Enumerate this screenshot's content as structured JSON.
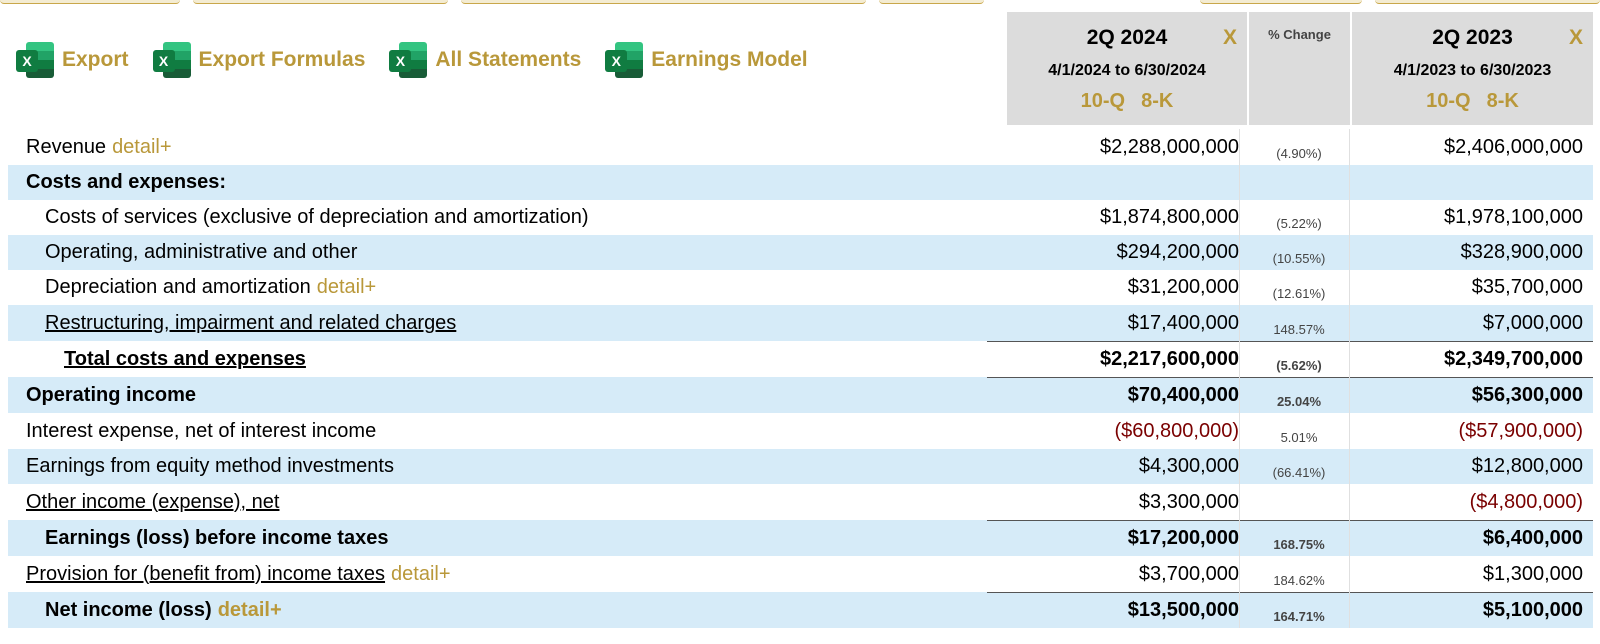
{
  "toolbar": [
    {
      "icon": "excel-icon",
      "icon_letter": "X",
      "label": "Export"
    },
    {
      "icon": "excel-icon",
      "icon_letter": "X",
      "label": "Export Formulas"
    },
    {
      "icon": "excel-icon",
      "icon_letter": "X",
      "label": "All Statements"
    },
    {
      "icon": "excel-icon",
      "icon_letter": "X",
      "label": "Earnings Model"
    }
  ],
  "columns": {
    "current": {
      "title": "2Q 2024",
      "close": "X",
      "dates": "4/1/2024 to 6/30/2024",
      "filings": [
        "10-Q",
        "8-K"
      ]
    },
    "change": {
      "title": "% Change"
    },
    "prior": {
      "title": "2Q 2023",
      "close": "X",
      "dates": "4/1/2023 to 6/30/2023",
      "filings": [
        "10-Q",
        "8-K"
      ]
    }
  },
  "detail_link": "detail+",
  "rows": [
    {
      "label": "Revenue",
      "detail": "detail+",
      "cur": "$2,288,000,000",
      "pct": "(4.90%)",
      "prior": "$2,406,000,000"
    },
    {
      "label": "Costs and expenses:",
      "cur": "",
      "pct": "",
      "prior": ""
    },
    {
      "label": "Costs of services (exclusive of depreciation and amortization)",
      "cur": "$1,874,800,000",
      "pct": "(5.22%)",
      "prior": "$1,978,100,000"
    },
    {
      "label": "Operating, administrative and other",
      "cur": "$294,200,000",
      "pct": "(10.55%)",
      "prior": "$328,900,000"
    },
    {
      "label": "Depreciation and amortization",
      "detail": "detail+",
      "cur": "$31,200,000",
      "pct": "(12.61%)",
      "prior": "$35,700,000"
    },
    {
      "label": "Restructuring, impairment and related charges",
      "cur": "$17,400,000",
      "pct": "148.57%",
      "prior": "$7,000,000"
    },
    {
      "label": "Total costs and expenses",
      "cur": "$2,217,600,000",
      "pct": "(5.62%)",
      "prior": "$2,349,700,000"
    },
    {
      "label": "Operating income",
      "cur": "$70,400,000",
      "pct": "25.04%",
      "prior": "$56,300,000"
    },
    {
      "label": "Interest expense, net of interest income",
      "cur": "($60,800,000)",
      "pct": "5.01%",
      "prior": "($57,900,000)"
    },
    {
      "label": "Earnings from equity method investments",
      "cur": "$4,300,000",
      "pct": "(66.41%)",
      "prior": "$12,800,000"
    },
    {
      "label": "Other income (expense), net",
      "cur": "$3,300,000",
      "pct": "",
      "prior": "($4,800,000)"
    },
    {
      "label": "Earnings (loss) before income taxes",
      "cur": "$17,200,000",
      "pct": "168.75%",
      "prior": "$6,400,000"
    },
    {
      "label": "Provision for (benefit from) income taxes",
      "detail": "detail+",
      "cur": "$3,700,000",
      "pct": "184.62%",
      "prior": "$1,300,000"
    },
    {
      "label": "Net income (loss)",
      "detail": "detail+",
      "cur": "$13,500,000",
      "pct": "164.71%",
      "prior": "$5,100,000"
    }
  ],
  "colors": {
    "accent_gold": "#b9983a",
    "row_blue": "#d6ebf8",
    "header_gray": "#dcdcdc",
    "negative": "#7a0000",
    "excel_green": "#107c41"
  }
}
